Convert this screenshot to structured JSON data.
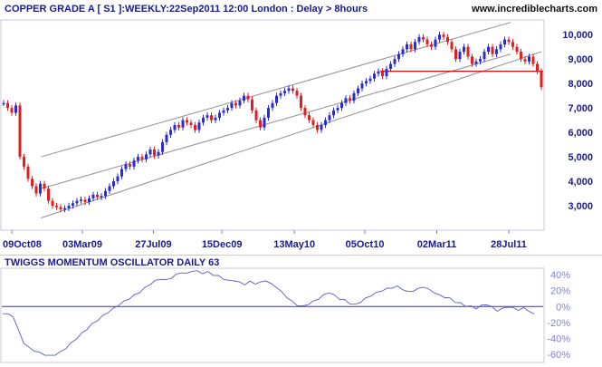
{
  "header": {
    "title": "COPPER GRADE A [ S1 ]:WEEKLY:22Sep2011 12:00 London  : Delay > 8hours",
    "site": "www.incrediblecharts.com"
  },
  "colors": {
    "up_bar": "#2b2bd6",
    "down_bar": "#e02020",
    "channel": "#909090",
    "support": "#d01010",
    "oscillator": "#5b5bc8",
    "zero_line": "#3a3a8a",
    "text": "#1a1a8c",
    "osc_tick_text": "#8080e0"
  },
  "chart_data": [
    {
      "type": "candlestick",
      "title": "COPPER GRADE A [ S1 ]:WEEKLY:22Sep2011 12:00 London  : Delay > 8hours",
      "x_tick_labels": [
        "09Oct08",
        "03Mar09",
        "27Jul09",
        "15Dec09",
        "13May10",
        "05Oct10",
        "02Mar11",
        "28Jul11"
      ],
      "y_tick_labels": [
        "3,000",
        "4,000",
        "5,000",
        "6,000",
        "7,000",
        "8,000",
        "9,000",
        "10,000"
      ],
      "y_ticks": [
        3000,
        4000,
        5000,
        6000,
        7000,
        8000,
        9000,
        10000
      ],
      "ylim": [
        2000,
        10600
      ],
      "x_start": "2008-09-22",
      "x_end": "2011-10-03",
      "closes": [
        7200,
        7000,
        6800,
        7100,
        5000,
        4600,
        4100,
        3800,
        3500,
        3900,
        3700,
        3200,
        3000,
        2950,
        2850,
        2900,
        3000,
        3100,
        3200,
        3250,
        3150,
        3300,
        3450,
        3350,
        3400,
        3600,
        3800,
        4000,
        4200,
        4500,
        4700,
        4600,
        4850,
        5000,
        4900,
        5100,
        5300,
        5050,
        5200,
        5600,
        5900,
        6100,
        6300,
        6200,
        6500,
        6400,
        6300,
        6100,
        6400,
        6600,
        6700,
        6500,
        6600,
        6800,
        6900,
        7000,
        7200,
        7100,
        7300,
        7500,
        7350,
        6900,
        6500,
        6200,
        6600,
        7000,
        7200,
        7500,
        7600,
        7700,
        7800,
        7700,
        7500,
        7000,
        6700,
        6500,
        6300,
        6100,
        6300,
        6500,
        6700,
        6900,
        7000,
        7200,
        7400,
        7300,
        7600,
        7800,
        8000,
        8100,
        8200,
        8400,
        8500,
        8300,
        8600,
        8800,
        9000,
        9200,
        9400,
        9600,
        9400,
        9700,
        9900,
        9800,
        9600,
        9500,
        9800,
        10000,
        9900,
        9700,
        9400,
        9000,
        9300,
        9500,
        9100,
        8800,
        8900,
        9000,
        9300,
        9500,
        9200,
        9400,
        9600,
        9800,
        9700,
        9500,
        9300,
        9000,
        8900,
        9100,
        8800,
        8500,
        7850
      ],
      "support_level": 8500,
      "channel_lines": [
        {
          "from": [
            "2008-12-08",
            5000
          ],
          "to": [
            "2011-08-01",
            10500
          ]
        },
        {
          "from": [
            "2008-12-08",
            3700
          ],
          "to": [
            "2011-08-01",
            9200
          ]
        },
        {
          "from": [
            "2008-12-08",
            2500
          ],
          "to": [
            "2011-10-03",
            9300
          ]
        }
      ]
    },
    {
      "type": "line",
      "title": "TWIGGS MOMENTUM OSCILLATOR DAILY 63",
      "series": [
        {
          "values": [
            -8,
            -10,
            -12,
            -30,
            -45,
            -52,
            -55,
            -58,
            -60,
            -62,
            -60,
            -57,
            -52,
            -46,
            -40,
            -34,
            -28,
            -22,
            -17,
            -12,
            -7,
            -3,
            2,
            6,
            10,
            14,
            18,
            23,
            28,
            32,
            35,
            33,
            36,
            40,
            43,
            41,
            45,
            44,
            42,
            43,
            40,
            38,
            35,
            32,
            33,
            30,
            28,
            31,
            29,
            30,
            33,
            28,
            25,
            18,
            12,
            6,
            2,
            0,
            3,
            6,
            10,
            14,
            18,
            14,
            10,
            8,
            4,
            2,
            6,
            10,
            14,
            17,
            20,
            22,
            24,
            25,
            22,
            18,
            20,
            22,
            25,
            21,
            18,
            14,
            12,
            10,
            6,
            4,
            1,
            0,
            -2,
            1,
            3,
            -1,
            -5,
            -3,
            0,
            -2,
            -4,
            -2,
            -5,
            -10
          ]
        }
      ],
      "y_tick_labels": [
        "-60%",
        "-40%",
        "-20%",
        "0%",
        "20%",
        "40%"
      ],
      "y_ticks": [
        -60,
        -40,
        -20,
        0,
        20,
        40
      ],
      "ylim": [
        -70,
        48
      ],
      "zero_line": 0
    }
  ]
}
